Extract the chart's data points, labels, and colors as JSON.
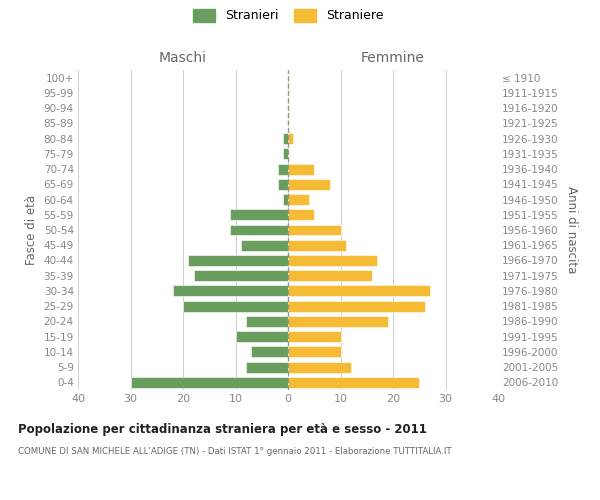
{
  "age_groups": [
    "0-4",
    "5-9",
    "10-14",
    "15-19",
    "20-24",
    "25-29",
    "30-34",
    "35-39",
    "40-44",
    "45-49",
    "50-54",
    "55-59",
    "60-64",
    "65-69",
    "70-74",
    "75-79",
    "80-84",
    "85-89",
    "90-94",
    "95-99",
    "100+"
  ],
  "birth_years": [
    "2006-2010",
    "2001-2005",
    "1996-2000",
    "1991-1995",
    "1986-1990",
    "1981-1985",
    "1976-1980",
    "1971-1975",
    "1966-1970",
    "1961-1965",
    "1956-1960",
    "1951-1955",
    "1946-1950",
    "1941-1945",
    "1936-1940",
    "1931-1935",
    "1926-1930",
    "1921-1925",
    "1916-1920",
    "1911-1915",
    "≤ 1910"
  ],
  "males": [
    30,
    8,
    7,
    10,
    8,
    20,
    22,
    18,
    19,
    9,
    11,
    11,
    1,
    2,
    2,
    1,
    1,
    0,
    0,
    0,
    0
  ],
  "females": [
    25,
    12,
    10,
    10,
    19,
    26,
    27,
    16,
    17,
    11,
    10,
    5,
    4,
    8,
    5,
    0,
    1,
    0,
    0,
    0,
    0
  ],
  "male_color": "#6a9e5f",
  "female_color": "#f5bb35",
  "title": "Popolazione per cittadinanza straniera per età e sesso - 2011",
  "subtitle": "COMUNE DI SAN MICHELE ALL'ADIGE (TN) - Dati ISTAT 1° gennaio 2011 - Elaborazione TUTTITALIA.IT",
  "label_maschi": "Maschi",
  "label_femmine": "Femmine",
  "ylabel_left": "Fasce di età",
  "ylabel_right": "Anni di nascita",
  "legend_male": "Stranieri",
  "legend_female": "Straniere",
  "xlim": 40,
  "bg_color": "#ffffff",
  "grid_color": "#d0d0d0",
  "tick_label_color": "#888888",
  "axis_label_color": "#666666"
}
